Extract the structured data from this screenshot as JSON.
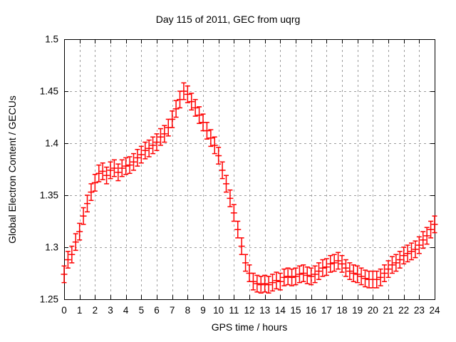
{
  "chart_data": {
    "type": "scatter",
    "style": "yerrorbars",
    "title": "Day 115 of 2011, GEC from uqrg",
    "xlabel": "GPS time / hours",
    "ylabel": "Global Electron Content / GECUs",
    "xlim": [
      0,
      24
    ],
    "ylim": [
      1.25,
      1.5
    ],
    "grid": true,
    "legend": "none",
    "x_ticks": [
      "0",
      "1",
      "2",
      "3",
      "4",
      "5",
      "6",
      "7",
      "8",
      "9",
      "10",
      "11",
      "12",
      "13",
      "14",
      "15",
      "16",
      "17",
      "18",
      "19",
      "20",
      "21",
      "22",
      "23",
      "24"
    ],
    "y_tick_values": [
      1.25,
      1.3,
      1.35,
      1.4,
      1.45,
      1.5
    ],
    "y_tick_labels": [
      "1.25",
      "1.3",
      "1.35",
      "1.4",
      "1.45",
      "1.5"
    ],
    "x": {
      "start": 0,
      "step": 0.25,
      "count": 97
    },
    "y": [
      1.274,
      1.288,
      1.293,
      1.305,
      1.315,
      1.33,
      1.342,
      1.353,
      1.362,
      1.371,
      1.373,
      1.369,
      1.374,
      1.376,
      1.372,
      1.376,
      1.378,
      1.379,
      1.382,
      1.386,
      1.389,
      1.393,
      1.395,
      1.398,
      1.401,
      1.406,
      1.409,
      1.415,
      1.423,
      1.433,
      1.442,
      1.45,
      1.447,
      1.44,
      1.434,
      1.427,
      1.42,
      1.412,
      1.405,
      1.398,
      1.388,
      1.374,
      1.361,
      1.347,
      1.333,
      1.317,
      1.301,
      1.285,
      1.275,
      1.267,
      1.265,
      1.264,
      1.265,
      1.264,
      1.266,
      1.268,
      1.267,
      1.271,
      1.272,
      1.271,
      1.272,
      1.274,
      1.275,
      1.273,
      1.272,
      1.274,
      1.277,
      1.28,
      1.281,
      1.284,
      1.285,
      1.287,
      1.284,
      1.28,
      1.277,
      1.275,
      1.274,
      1.272,
      1.27,
      1.269,
      1.269,
      1.269,
      1.271,
      1.275,
      1.279,
      1.283,
      1.285,
      1.288,
      1.292,
      1.294,
      1.296,
      1.298,
      1.302,
      1.307,
      1.311,
      1.317,
      1.322
    ],
    "yerr": 0.008,
    "colors": {
      "series": "#ff0000",
      "grid": "#9e9e9e",
      "axis": "#000000",
      "text": "#000000",
      "background": "#ffffff"
    }
  }
}
